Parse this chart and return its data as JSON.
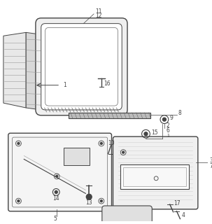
{
  "bg_color": "#ffffff",
  "lc": "#444444",
  "lg": "#999999",
  "mg": "#666666",
  "figsize": [
    3.03,
    3.2
  ],
  "dpi": 100
}
